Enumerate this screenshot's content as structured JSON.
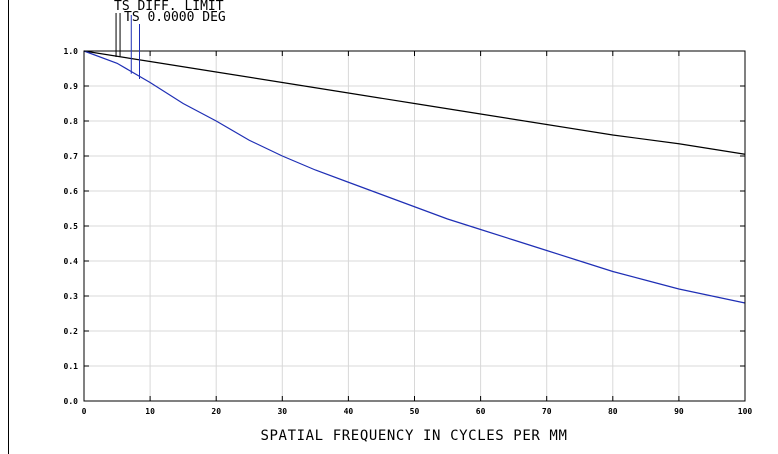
{
  "chart_data": {
    "type": "line",
    "title": "",
    "xlabel": "SPATIAL FREQUENCY IN CYCLES PER MM",
    "ylabel": "",
    "xlim": [
      0,
      100
    ],
    "ylim": [
      0.0,
      1.0
    ],
    "grid": true,
    "xticks": [
      0,
      10,
      20,
      30,
      40,
      50,
      60,
      70,
      80,
      90,
      100
    ],
    "xtick_labels": [
      "0",
      "10",
      "20",
      "30",
      "40",
      "50",
      "60",
      "70",
      "80",
      "90",
      "100"
    ],
    "yticks": [
      0.0,
      0.1,
      0.2,
      0.3,
      0.4,
      0.5,
      0.6,
      0.7,
      0.8,
      0.9,
      1.0
    ],
    "ytick_labels": [
      "0.0",
      "0.1",
      "0.2",
      "0.3",
      "0.4",
      "0.5",
      "0.6",
      "0.7",
      "0.8",
      "0.9",
      "1.0"
    ],
    "legend_placement": "top-left, above plot",
    "series": [
      {
        "name": "TS DIFF. LIMIT",
        "color": "#000000",
        "x": [
          0,
          10,
          20,
          30,
          40,
          50,
          60,
          70,
          80,
          90,
          100
        ],
        "values": [
          1.0,
          0.97,
          0.94,
          0.91,
          0.88,
          0.85,
          0.82,
          0.79,
          0.76,
          0.735,
          0.705
        ]
      },
      {
        "name": "TS 0.0000 DEG",
        "color": "#1f2fb5",
        "x": [
          0,
          5,
          10,
          15,
          20,
          25,
          30,
          35,
          40,
          45,
          50,
          55,
          60,
          65,
          70,
          75,
          80,
          85,
          90,
          95,
          100
        ],
        "values": [
          1.0,
          0.965,
          0.91,
          0.85,
          0.8,
          0.745,
          0.7,
          0.66,
          0.625,
          0.59,
          0.555,
          0.52,
          0.49,
          0.46,
          0.43,
          0.4,
          0.37,
          0.345,
          0.32,
          0.3,
          0.28
        ]
      }
    ],
    "legend_marker_x": [
      5.0,
      7.0,
      9.0
    ]
  }
}
